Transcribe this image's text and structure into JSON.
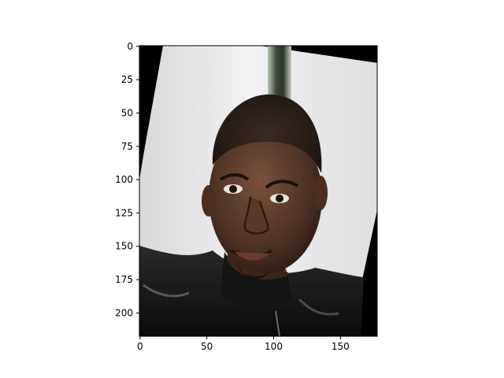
{
  "chart_data": {
    "type": "image",
    "title": "",
    "xlabel": "",
    "ylabel": "",
    "image_size": {
      "width": 178,
      "height": 218
    },
    "xlim": [
      -0.5,
      177.5
    ],
    "ylim": [
      217.5,
      -0.5
    ],
    "x_ticks": [
      0,
      50,
      100,
      150
    ],
    "y_ticks": [
      0,
      25,
      50,
      75,
      100,
      125,
      150,
      175,
      200
    ],
    "x_tick_labels": [
      "0",
      "50",
      "100",
      "150"
    ],
    "y_tick_labels": [
      "0",
      "25",
      "50",
      "75",
      "100",
      "125",
      "150",
      "175",
      "200"
    ],
    "content": "rotated portrait photo of a smiling man with a shaved head wearing a black leather jacket, light grey studio background, black fill in rotated corners"
  }
}
